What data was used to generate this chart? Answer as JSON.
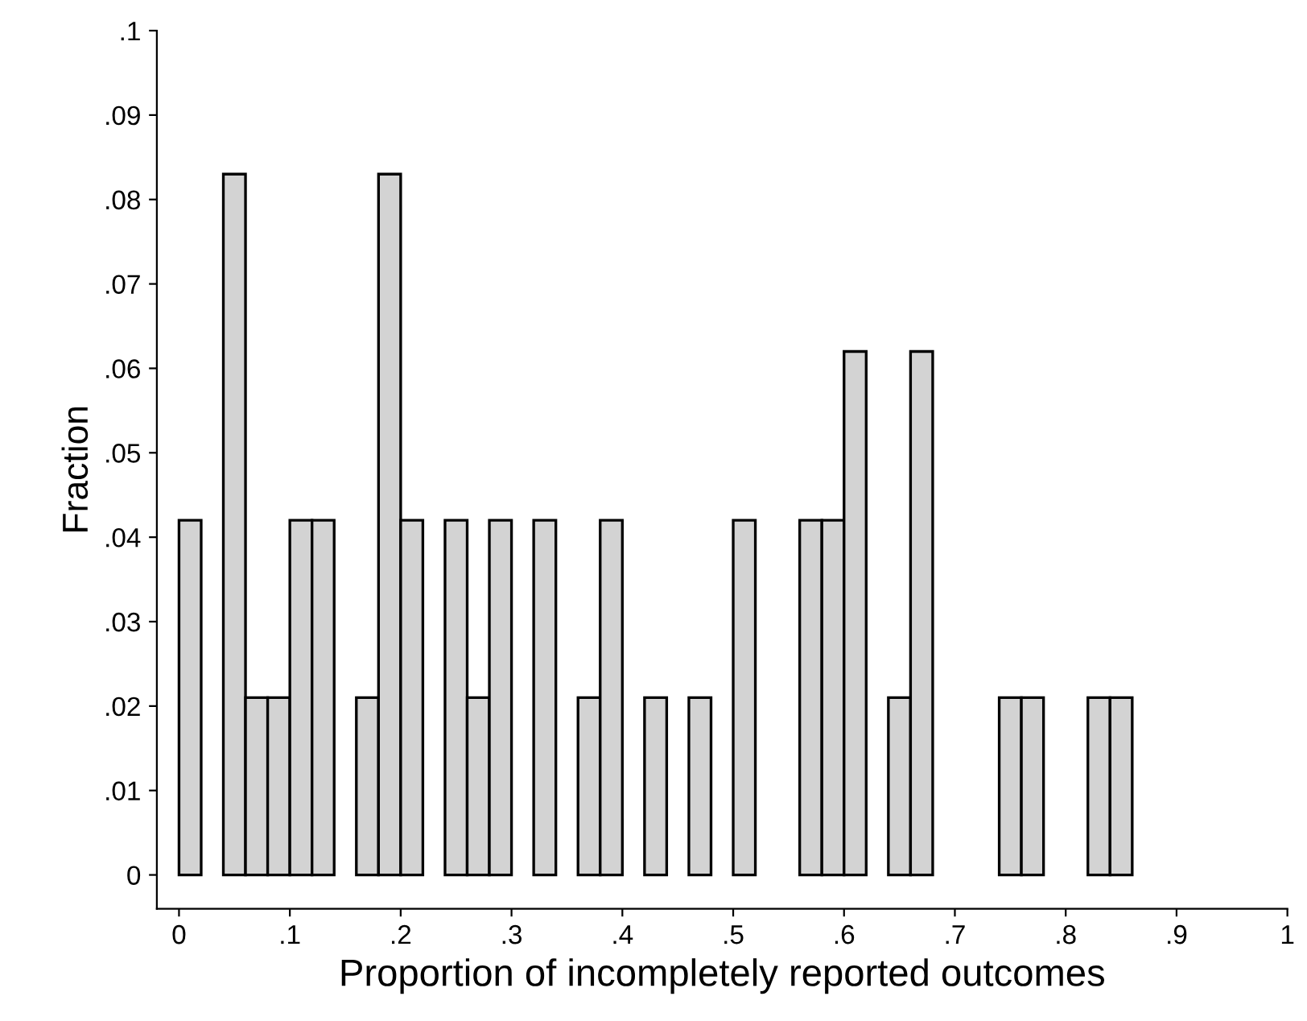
{
  "chart_data": {
    "type": "histogram",
    "xlabel": "Proportion of incompletely reported outcomes",
    "ylabel": "Fraction",
    "bins": [
      0,
      0.02,
      0.04,
      0.06,
      0.08,
      0.1,
      0.12,
      0.14,
      0.16,
      0.18,
      0.2,
      0.22,
      0.24,
      0.26,
      0.28,
      0.3,
      0.32,
      0.34,
      0.36,
      0.38,
      0.4,
      0.42,
      0.44,
      0.46,
      0.48,
      0.5,
      0.52,
      0.54,
      0.56,
      0.58,
      0.6,
      0.62,
      0.64,
      0.66,
      0.68,
      0.7,
      0.72,
      0.74,
      0.76,
      0.78,
      0.8,
      0.82,
      0.84,
      0.86
    ],
    "values": [
      0.042,
      0,
      0.083,
      0.021,
      0.021,
      0.042,
      0.042,
      0,
      0.021,
      0.083,
      0.042,
      0,
      0.042,
      0.021,
      0.042,
      0,
      0.042,
      0,
      0.021,
      0.042,
      0,
      0.021,
      0,
      0.021,
      0,
      0.042,
      0,
      0,
      0.042,
      0.042,
      0.062,
      0,
      0.021,
      0.062,
      0,
      0,
      0,
      0.021,
      0.021,
      0,
      0,
      0.021,
      0.021
    ],
    "color": "#d3d3d3",
    "xlim": [
      -0.02,
      1.0
    ],
    "ylim": [
      -0.004,
      0.1
    ],
    "xticks": [
      0,
      {
        "value": 0.1,
        "label": ".1"
      },
      {
        "value": 0.2,
        "label": ".2"
      },
      {
        "value": 0.3,
        "label": ".3"
      },
      {
        "value": 0.4,
        "label": ".4"
      },
      {
        "value": 0.5,
        "label": ".5"
      },
      {
        "value": 0.6,
        "label": ".6"
      },
      {
        "value": 0.7,
        "label": ".7"
      },
      {
        "value": 0.8,
        "label": ".8"
      },
      {
        "value": 0.9,
        "label": ".9"
      },
      1
    ],
    "yticks": [
      0,
      {
        "value": 0.01,
        "label": ".01"
      },
      {
        "value": 0.02,
        "label": ".02"
      },
      {
        "value": 0.03,
        "label": ".03"
      },
      {
        "value": 0.04,
        "label": ".04"
      },
      {
        "value": 0.05,
        "label": ".05"
      },
      {
        "value": 0.06,
        "label": ".06"
      },
      {
        "value": 0.07,
        "label": ".07"
      },
      {
        "value": 0.08,
        "label": ".08"
      },
      {
        "value": 0.09,
        "label": ".09"
      },
      {
        "value": 0.1,
        "label": ".1"
      }
    ],
    "grid": false
  }
}
